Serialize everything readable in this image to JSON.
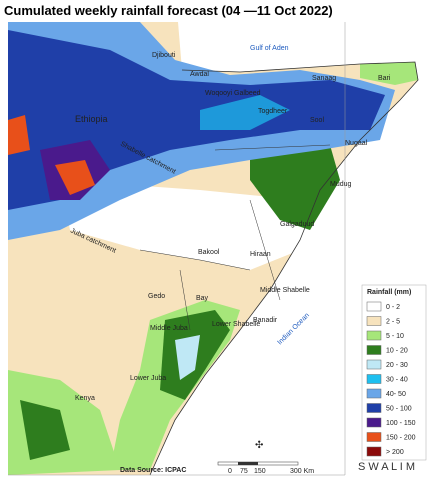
{
  "header": {
    "title": "Cumulated weekly  rainfall forecast  (04 —11 Oct 2022)"
  },
  "labels": {
    "djibouti": "Djibouti",
    "gulf": "Gulf of Aden",
    "awdal": "Awdal",
    "sanaag": "Sanaag",
    "bari": "Bari",
    "woqooyi": "Woqooyi Galbeed",
    "togdheer": "Togdheer",
    "sool": "Sool",
    "nugaal": "Nugaal",
    "ethiopia": "Ethiopia",
    "shabelle_catch": "Shabelle catchment",
    "juba_catch": "Juba catchment",
    "mudug": "Mudug",
    "galgaduud": "Galgaduud",
    "hiraan": "Hiraan",
    "bakool": "Bakool",
    "middle_shabelle": "Middle Shabelle",
    "gedo": "Gedo",
    "bay": "Bay",
    "lower_shabelle": "Lower Shabelle",
    "banadir": "Banadir",
    "middle_juba": "Middle Juba",
    "lower_juba": "Lower Juba",
    "kenya": "Kenya",
    "ocean": "Indian Ocean"
  },
  "legend": {
    "title": "Rainfall (mm)",
    "items": [
      {
        "label": "0 - 2",
        "color": "#ffffff"
      },
      {
        "label": "2 - 5",
        "color": "#f7e3bd"
      },
      {
        "label": "5 - 10",
        "color": "#a6e67a"
      },
      {
        "label": "10 - 20",
        "color": "#2e7d1e"
      },
      {
        "label": "20 - 30",
        "color": "#bfe8f5"
      },
      {
        "label": "30 - 40",
        "color": "#1ec0f0"
      },
      {
        "label": "40- 50",
        "color": "#6aa6e8"
      },
      {
        "label": "50 - 100",
        "color": "#1f3fa8"
      },
      {
        "label": "100 - 150",
        "color": "#4a1a8c"
      },
      {
        "label": "150 - 200",
        "color": "#e8501a"
      },
      {
        "label": "> 200",
        "color": "#8b0a0a"
      }
    ]
  },
  "scale": {
    "ticks": [
      "0",
      "75",
      "150",
      "300 Km"
    ]
  },
  "footer": {
    "source": "Data Source: ICPAC",
    "logo": "S W A L I M"
  }
}
